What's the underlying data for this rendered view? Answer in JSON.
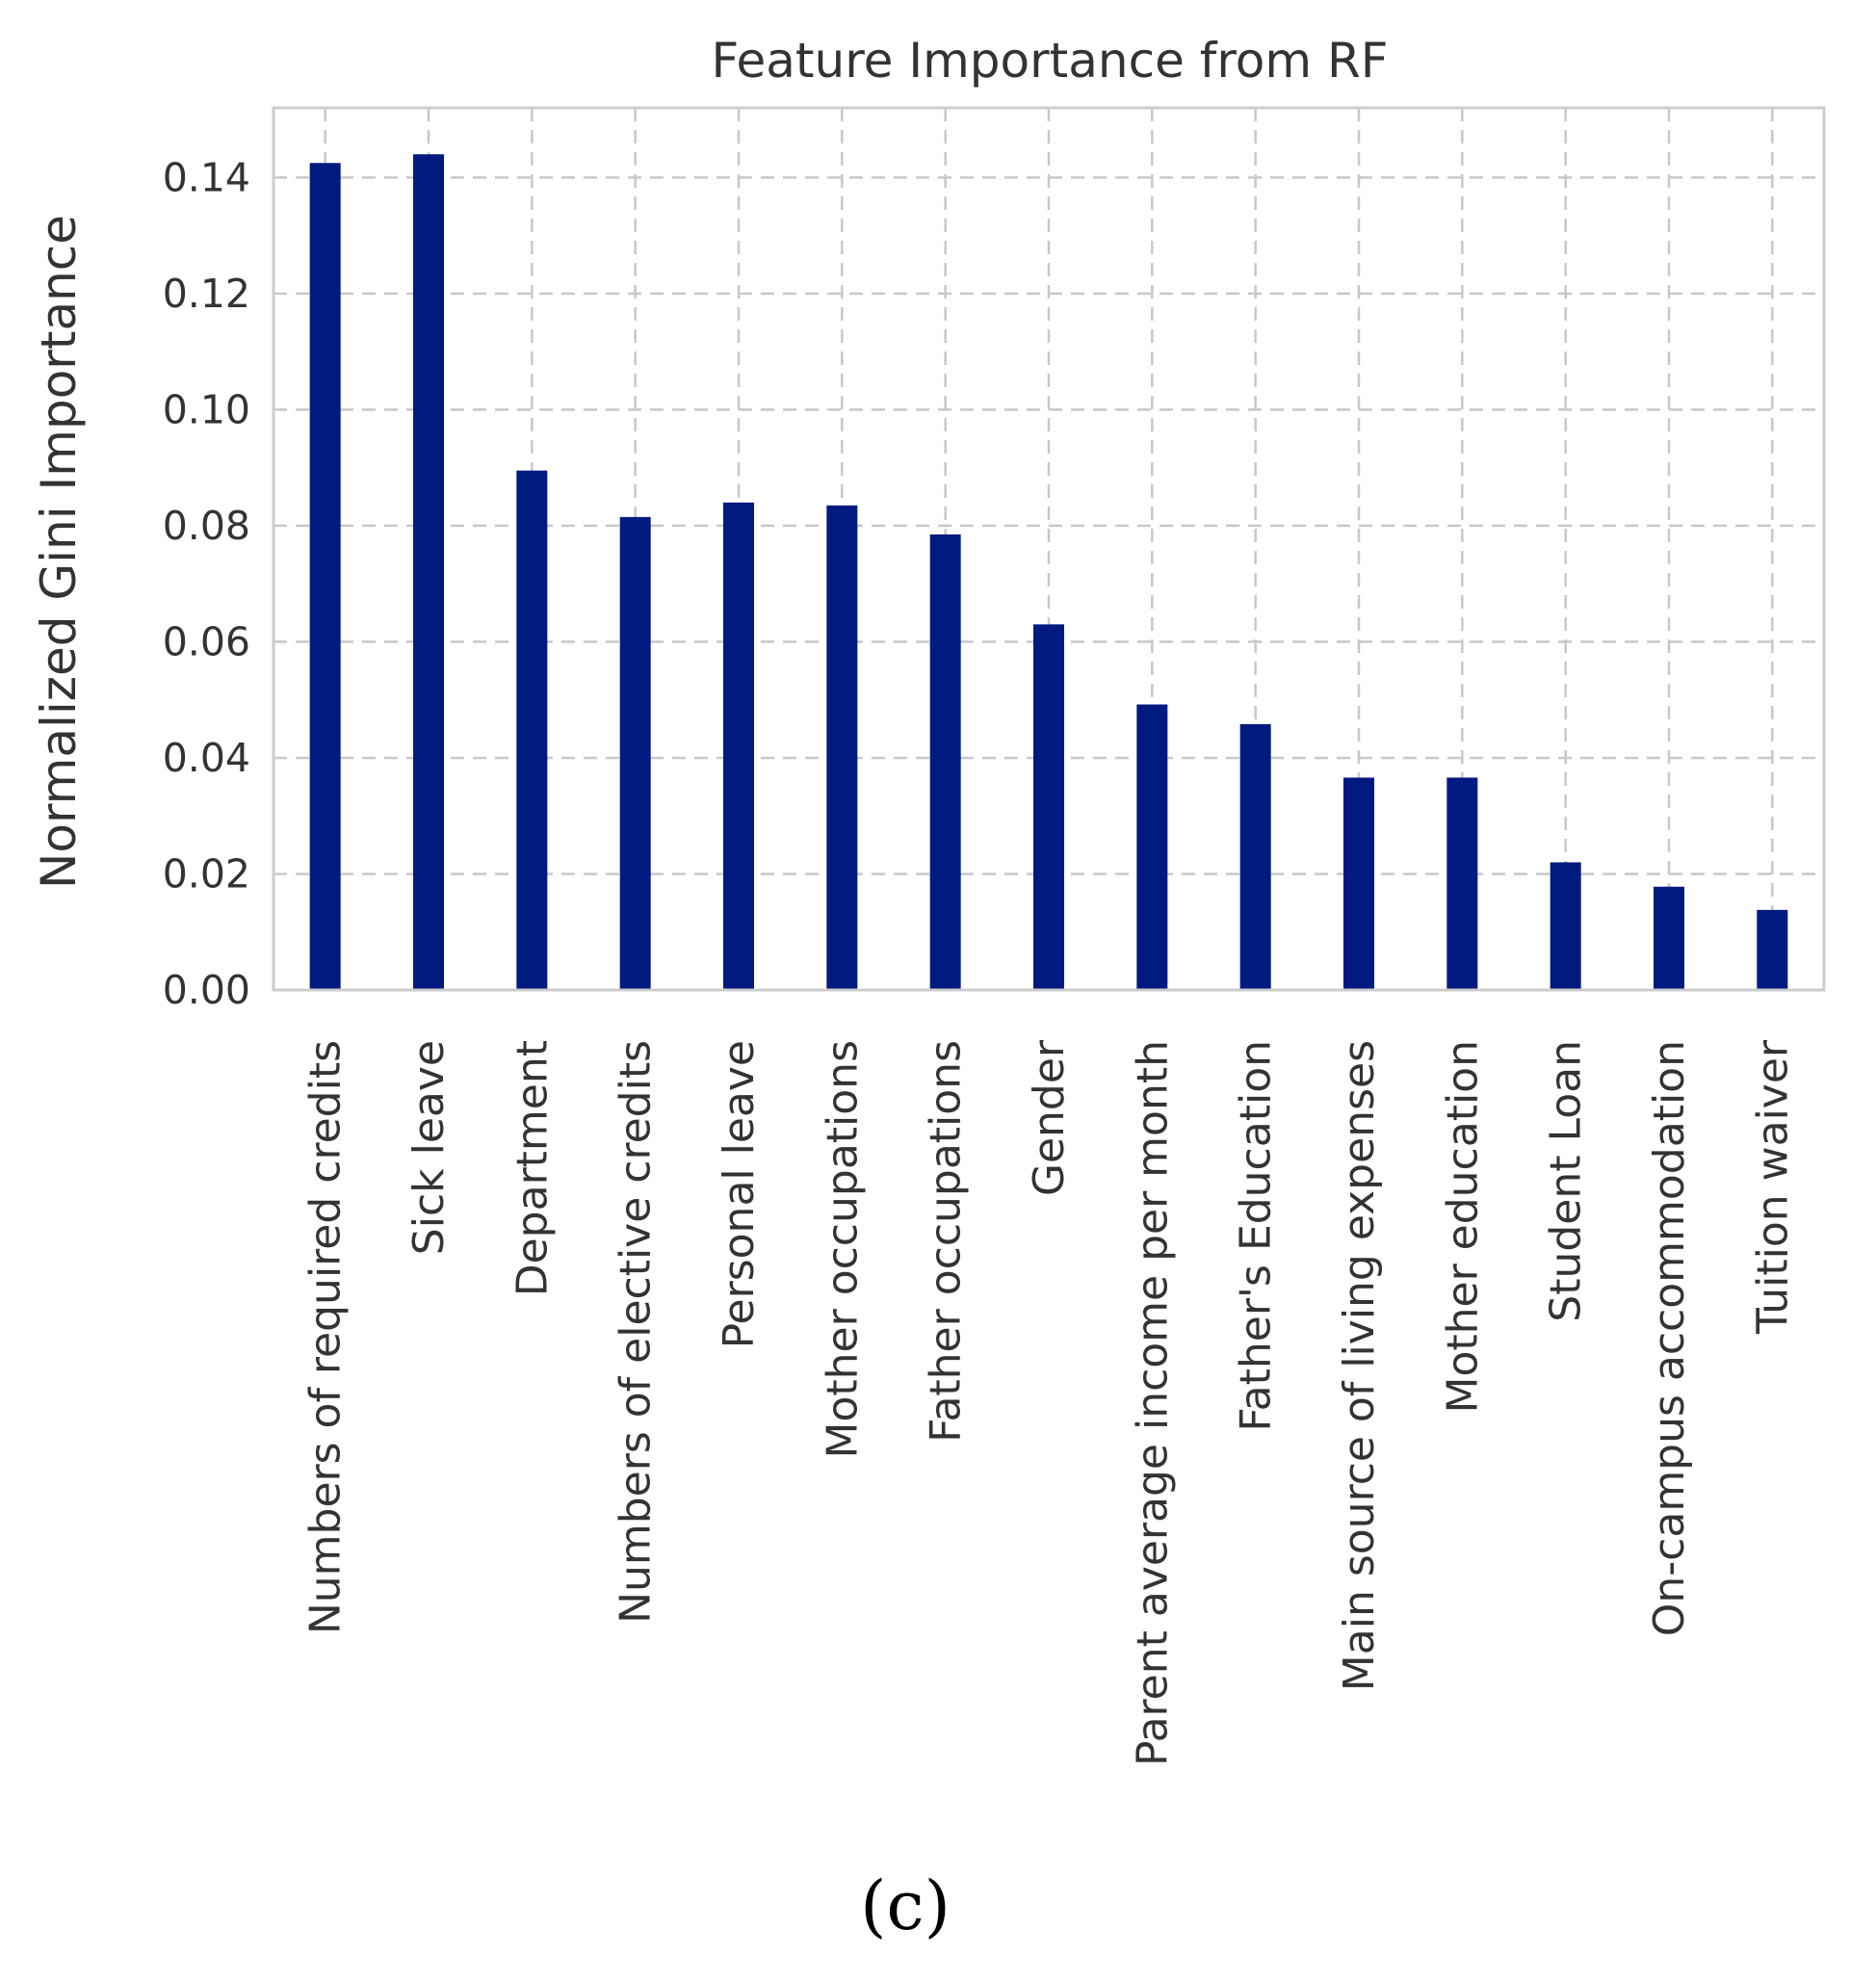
{
  "chart_data": {
    "type": "bar",
    "title": "Feature Importance from RF",
    "xlabel": "",
    "ylabel": "Normalized Gini Importance",
    "ylim": [
      0,
      0.152
    ],
    "yticks": [
      "0.00",
      "0.02",
      "0.04",
      "0.06",
      "0.08",
      "0.10",
      "0.12",
      "0.14"
    ],
    "grid": true,
    "categories": [
      "Numbers of required credits",
      "Sick leave",
      "Department",
      "Numbers of elective credits",
      "Personal leave",
      "Mother occupations",
      "Father occupations",
      "Gender",
      "Parent average income per month",
      "Father's Education",
      "Main source of living expenses",
      "Mother education",
      "Student Loan",
      "On-campus accommodation",
      "Tuition waiver"
    ],
    "values": [
      0.1425,
      0.144,
      0.0895,
      0.0815,
      0.084,
      0.0835,
      0.0785,
      0.063,
      0.0492,
      0.0458,
      0.0366,
      0.0366,
      0.022,
      0.0178,
      0.0138
    ],
    "colors": {
      "bar": "#001a80",
      "grid": "#c8c8c8",
      "frame": "#cccccc",
      "text": "#333333"
    }
  },
  "panel_label": "(c)"
}
